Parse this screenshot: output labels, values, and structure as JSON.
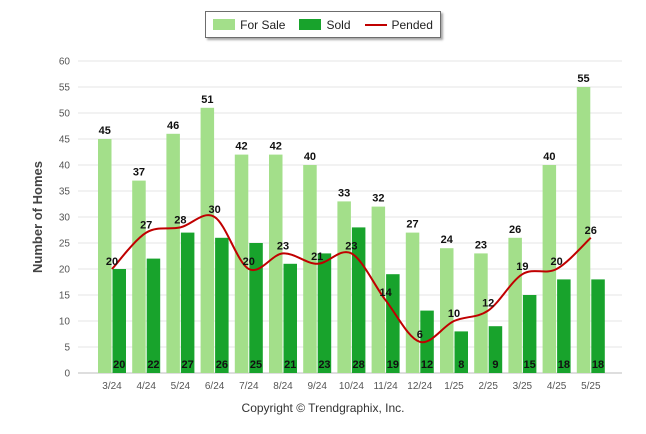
{
  "legend": {
    "for_sale": "For Sale",
    "sold": "Sold",
    "pended": "Pended"
  },
  "footer": {
    "copyright": "Copyright © Trendgraphix, Inc."
  },
  "colors": {
    "for_sale": "#a3df8a",
    "sold": "#18a32c",
    "pended": "#c00000",
    "grid": "#e6e6e6",
    "axis_text": "#555555"
  },
  "chart_data": {
    "type": "bar",
    "ylabel": "Number of Homes",
    "ylim": [
      0,
      60
    ],
    "yticks": [
      0,
      5,
      10,
      15,
      20,
      25,
      30,
      35,
      40,
      45,
      50,
      55,
      60
    ],
    "categories": [
      "3/24",
      "4/24",
      "5/24",
      "6/24",
      "7/24",
      "8/24",
      "9/24",
      "10/24",
      "11/24",
      "12/24",
      "1/25",
      "2/25",
      "3/25",
      "4/25",
      "5/25"
    ],
    "series": [
      {
        "name": "For Sale",
        "kind": "bar",
        "values": [
          45,
          37,
          46,
          51,
          42,
          42,
          40,
          33,
          32,
          27,
          24,
          23,
          26,
          40,
          55
        ]
      },
      {
        "name": "Sold",
        "kind": "bar",
        "values": [
          20,
          22,
          27,
          26,
          25,
          21,
          23,
          28,
          19,
          12,
          8,
          9,
          15,
          18,
          18
        ]
      },
      {
        "name": "Pended",
        "kind": "line",
        "values": [
          20,
          27,
          28,
          30,
          20,
          23,
          21,
          23,
          14,
          6,
          10,
          12,
          19,
          20,
          26
        ]
      }
    ],
    "grid": true,
    "legend_position": "top-center"
  }
}
